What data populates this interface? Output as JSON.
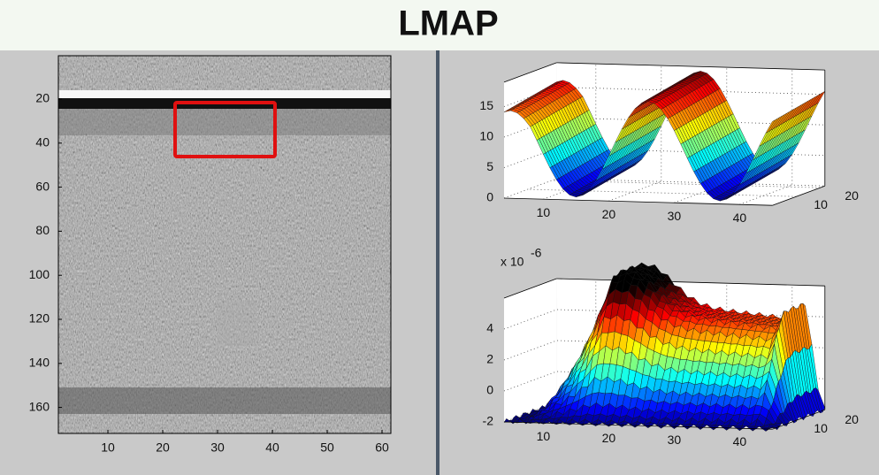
{
  "header": {
    "title": "LMAP"
  },
  "image_panel": {
    "yticks": [
      20,
      40,
      60,
      80,
      100,
      120,
      140,
      160
    ],
    "xticks": [
      10,
      20,
      30,
      40,
      50,
      60
    ]
  },
  "surface_top": {
    "zticks": [
      0,
      5,
      10,
      15
    ],
    "xticks": [
      10,
      20,
      30,
      40
    ],
    "yticks": [
      10,
      20
    ]
  },
  "surface_bottom": {
    "scale_label": "x 10",
    "scale_exponent": "-6",
    "zticks": [
      -2,
      0,
      2,
      4
    ],
    "xticks": [
      10,
      20,
      30,
      40
    ],
    "yticks": [
      10,
      20
    ]
  }
}
